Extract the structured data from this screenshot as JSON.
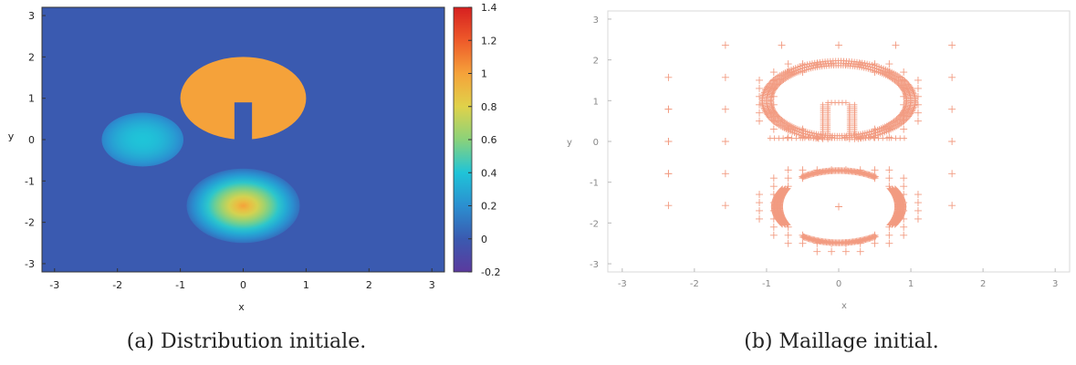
{
  "captions": {
    "a": "(a) Distribution initiale.",
    "b": "(b) Maillage initial."
  },
  "chart_data": [
    {
      "type": "heatmap",
      "xlabel": "x",
      "ylabel": "y",
      "xlim": [
        -3.2,
        3.2
      ],
      "ylim": [
        -3.2,
        3.2
      ],
      "x_ticks": [
        -3,
        -2,
        -1,
        0,
        1,
        2,
        3
      ],
      "y_ticks": [
        -3,
        -2,
        -1,
        0,
        1,
        2,
        3
      ],
      "colorbar": {
        "range": [
          -0.2,
          1.4
        ],
        "ticks": [
          -0.2,
          0,
          0.2,
          0.4,
          0.6,
          0.8,
          1,
          1.2,
          1.4
        ],
        "colors": [
          "#5b3a9e",
          "#3a5ab0",
          "#2b8fd0",
          "#1fc4d8",
          "#8ad27a",
          "#e0d24a",
          "#f5a23a",
          "#ee5a2a",
          "#d62020"
        ]
      },
      "background_value": 0,
      "shapes": [
        {
          "name": "slotted-disk",
          "center": [
            0,
            1
          ],
          "radius": 1.0,
          "value": 1.0,
          "slot_width": 0.28,
          "slot_bottom": 0.0,
          "slot_top": 0.9
        },
        {
          "name": "bump",
          "center": [
            -1.6,
            0
          ],
          "radius": 0.65,
          "peak": 0.4
        },
        {
          "name": "cone",
          "center": [
            0,
            -1.6
          ],
          "radius": 0.9,
          "peak": 1.0
        }
      ]
    },
    {
      "type": "scatter",
      "xlabel": "x",
      "ylabel": "y",
      "xlim": [
        -3.2,
        3.2
      ],
      "ylim": [
        -3.2,
        3.2
      ],
      "x_ticks": [
        -3,
        -2,
        -1,
        0,
        1,
        2,
        3
      ],
      "y_ticks": [
        -3,
        -2,
        -1,
        0,
        1,
        2,
        3
      ],
      "marker": "+",
      "color": "#f08a6c",
      "grid": false
    }
  ]
}
